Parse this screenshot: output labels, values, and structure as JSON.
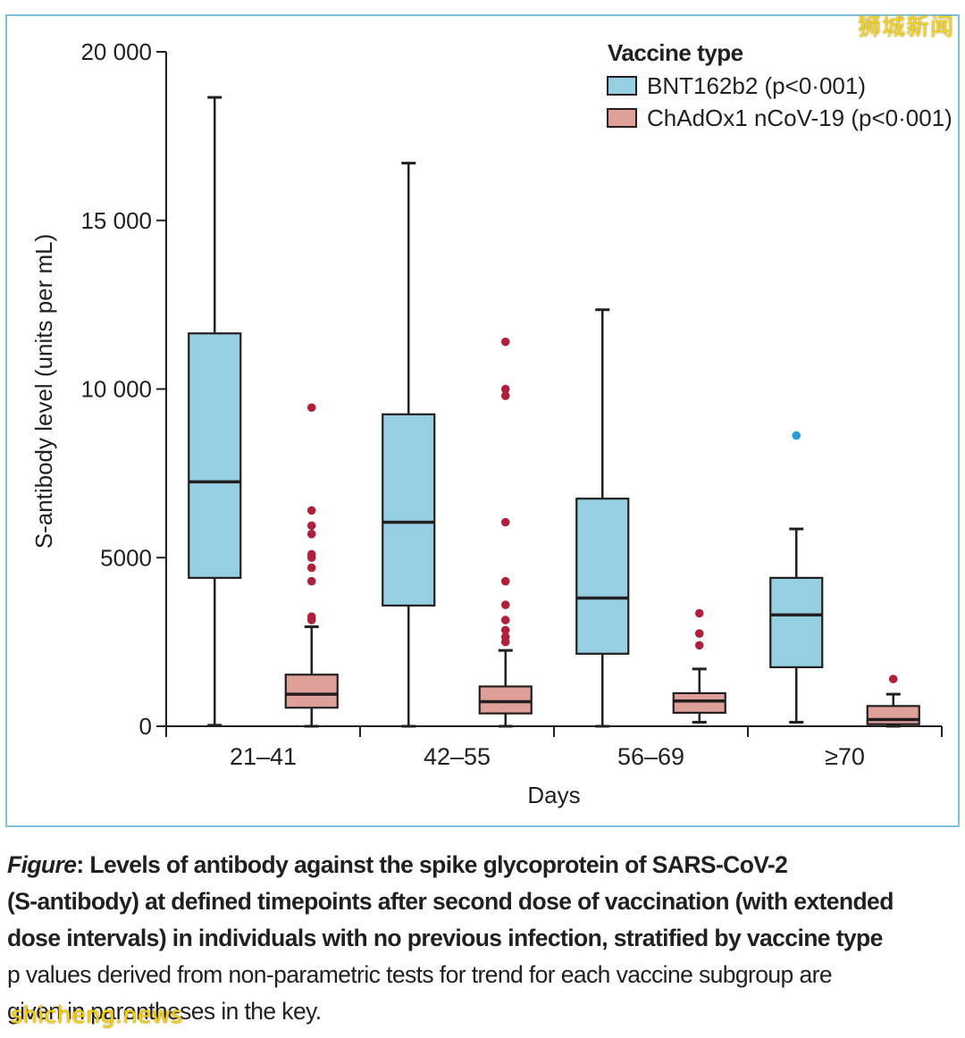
{
  "chart_data": {
    "type": "boxplot",
    "title": "",
    "ylabel": "S-antibody level (units per mL)",
    "xlabel": "Days",
    "ylim": [
      0,
      20000
    ],
    "y_ticks": [
      0,
      5000,
      10000,
      15000,
      20000
    ],
    "y_tick_labels": [
      "0",
      "5000",
      "10 000",
      "15 000",
      "20 000"
    ],
    "categories": [
      "21–41",
      "42–55",
      "56–69",
      "≥70"
    ],
    "legend": {
      "title": "Vaccine type",
      "position": "top-right",
      "entries": [
        "BNT162b2 (p<0·001)",
        "ChAdOx1 nCoV-19 (p<0·001)"
      ]
    },
    "series": [
      {
        "name": "BNT162b2 (p<0·001)",
        "color": "#96cfe2",
        "outlier_color": "#2a9fd6",
        "boxes": [
          {
            "whisker_low": 30,
            "q1": 4400,
            "median": 7250,
            "q3": 11650,
            "whisker_high": 18650,
            "outliers": []
          },
          {
            "whisker_low": 0,
            "q1": 3580,
            "median": 6050,
            "q3": 9250,
            "whisker_high": 16700,
            "outliers": []
          },
          {
            "whisker_low": 0,
            "q1": 2150,
            "median": 3800,
            "q3": 6750,
            "whisker_high": 12350,
            "outliers": []
          },
          {
            "whisker_low": 120,
            "q1": 1750,
            "median": 3300,
            "q3": 4400,
            "whisker_high": 5850,
            "outliers": [
              8620
            ]
          }
        ]
      },
      {
        "name": "ChAdOx1 nCoV-19 (p<0·001)",
        "color": "#dfa09a",
        "outlier_color": "#b0203a",
        "boxes": [
          {
            "whisker_low": 0,
            "q1": 550,
            "median": 950,
            "q3": 1530,
            "whisker_high": 2950,
            "outliers": [
              3150,
              3250,
              4300,
              4700,
              5000,
              5100,
              5700,
              5950,
              6400,
              9450
            ]
          },
          {
            "whisker_low": 0,
            "q1": 380,
            "median": 730,
            "q3": 1180,
            "whisker_high": 2250,
            "outliers": [
              2500,
              2650,
              2850,
              3150,
              3600,
              4300,
              6050,
              9800,
              10000,
              11400
            ]
          },
          {
            "whisker_low": 120,
            "q1": 400,
            "median": 750,
            "q3": 980,
            "whisker_high": 1700,
            "outliers": [
              2400,
              2750,
              3350
            ]
          },
          {
            "whisker_low": 0,
            "q1": 60,
            "median": 200,
            "q3": 600,
            "whisker_high": 950,
            "outliers": [
              1400
            ]
          }
        ]
      }
    ]
  },
  "caption": {
    "label": "Figure",
    "title_part1": ": Levels of antibody against the spike glycoprotein of SARS-CoV-2",
    "title_part2": "(S-antibody) at defined timepoints after second dose of vaccination (with extended",
    "title_part3": "dose intervals) in individuals with no previous infection, stratified by vaccine type",
    "note_line1": "p values derived from non-parametric tests for trend for each vaccine subgroup are",
    "note_line2": "given in parentheses in the key."
  },
  "watermarks": {
    "top": "狮城新闻",
    "bottom": "shicheng.news"
  }
}
